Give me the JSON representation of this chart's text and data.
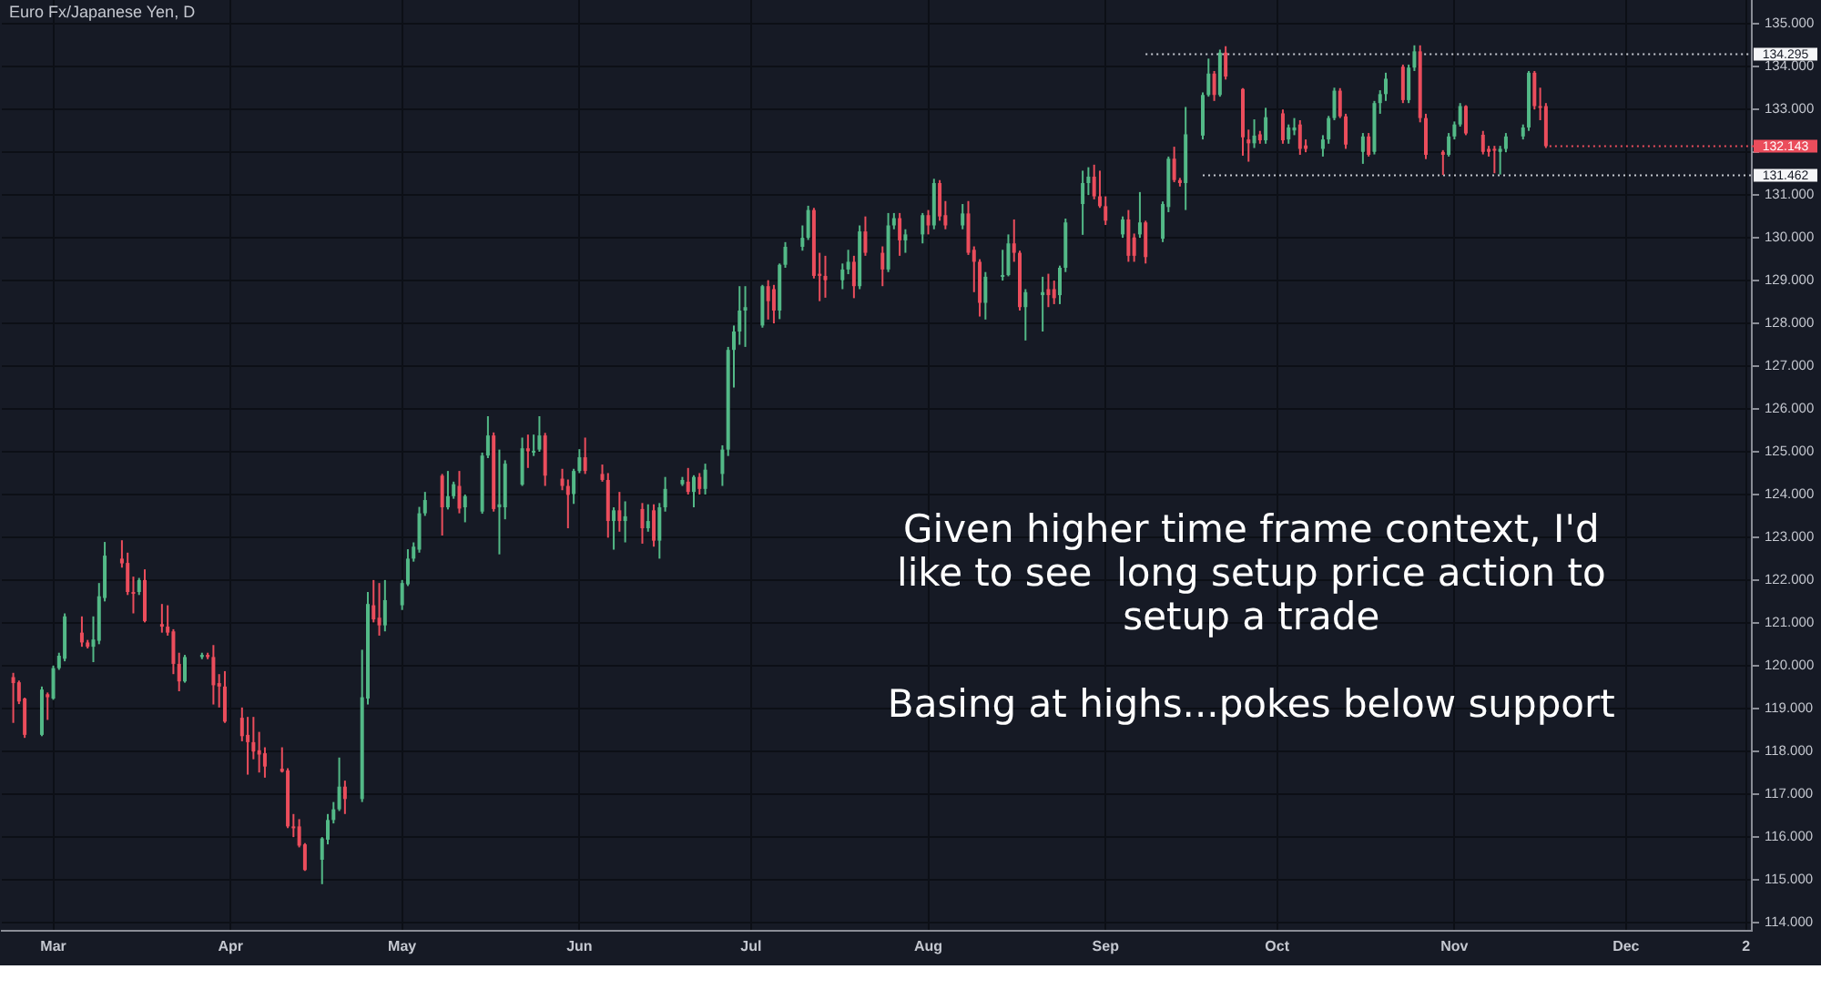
{
  "chart_data": {
    "type": "candlestick",
    "title": "Euro Fx/Japanese Yen, D",
    "x": [
      "--02-22",
      "--02-23",
      "--02-24",
      "--02-27",
      "--02-28",
      "--03-01",
      "--03-02",
      "--03-03",
      "--03-06",
      "--03-07",
      "--03-08",
      "--03-09",
      "--03-10",
      "--03-13",
      "--03-14",
      "--03-15",
      "--03-16",
      "--03-17",
      "--03-20",
      "--03-21",
      "--03-22",
      "--03-23",
      "--03-24",
      "--03-27",
      "--03-28",
      "--03-29",
      "--03-30",
      "--03-31",
      "--04-03",
      "--04-04",
      "--04-05",
      "--04-06",
      "--04-07",
      "--04-10",
      "--04-11",
      "--04-12",
      "--04-13",
      "--04-14",
      "--04-17",
      "--04-18",
      "--04-19",
      "--04-20",
      "--04-21",
      "--04-24",
      "--04-25",
      "--04-26",
      "--04-27",
      "--04-28",
      "--05-01",
      "--05-02",
      "--05-03",
      "--05-04",
      "--05-05",
      "--05-08",
      "--05-09",
      "--05-10",
      "--05-11",
      "--05-12",
      "--05-15",
      "--05-16",
      "--05-17",
      "--05-18",
      "--05-19",
      "--05-22",
      "--05-23",
      "--05-24",
      "--05-25",
      "--05-26",
      "--05-29",
      "--05-30",
      "--05-31",
      "--06-01",
      "--06-02",
      "--06-05",
      "--06-06",
      "--06-07",
      "--06-08",
      "--06-09",
      "--06-12",
      "--06-13",
      "--06-14",
      "--06-15",
      "--06-16",
      "--06-19",
      "--06-20",
      "--06-21",
      "--06-22",
      "--06-23",
      "--06-26",
      "--06-27",
      "--06-28",
      "--06-29",
      "--06-30",
      "--07-03",
      "--07-04",
      "--07-05",
      "--07-06",
      "--07-07",
      "--07-10",
      "--07-11",
      "--07-12",
      "--07-13",
      "--07-14",
      "--07-17",
      "--07-18",
      "--07-19",
      "--07-20",
      "--07-21",
      "--07-24",
      "--07-25",
      "--07-26",
      "--07-27",
      "--07-28",
      "--07-31",
      "--08-01",
      "--08-02",
      "--08-03",
      "--08-04",
      "--08-07",
      "--08-08",
      "--08-09",
      "--08-10",
      "--08-11",
      "--08-14",
      "--08-15",
      "--08-16",
      "--08-17",
      "--08-18",
      "--08-21",
      "--08-22",
      "--08-23",
      "--08-24",
      "--08-25",
      "--08-28",
      "--08-29",
      "--08-30",
      "--08-31",
      "--09-01",
      "--09-04",
      "--09-05",
      "--09-06",
      "--09-07",
      "--09-08",
      "--09-11",
      "--09-12",
      "--09-13",
      "--09-14",
      "--09-15",
      "--09-18",
      "--09-19",
      "--09-20",
      "--09-21",
      "--09-22",
      "--09-25",
      "--09-26",
      "--09-27",
      "--09-28",
      "--09-29",
      "--10-02",
      "--10-03",
      "--10-04",
      "--10-05",
      "--10-06",
      "--10-09",
      "--10-10",
      "--10-11",
      "--10-12",
      "--10-13",
      "--10-16",
      "--10-17",
      "--10-18",
      "--10-19",
      "--10-20",
      "--10-23",
      "--10-24",
      "--10-25",
      "--10-26",
      "--10-27",
      "--10-30",
      "--10-31",
      "--11-01",
      "--11-02",
      "--11-03",
      "--11-06",
      "--11-07",
      "--11-08",
      "--11-09",
      "--11-10",
      "--11-13",
      "--11-14",
      "--11-15",
      "--11-16",
      "--11-17"
    ],
    "ohlc": [
      [
        119.73,
        119.83,
        118.66,
        119.59
      ],
      [
        119.61,
        119.65,
        119.1,
        119.16
      ],
      [
        119.23,
        119.25,
        118.31,
        118.38
      ],
      [
        118.38,
        119.51,
        118.35,
        119.44
      ],
      [
        119.33,
        119.37,
        118.73,
        119.26
      ],
      [
        119.23,
        120.0,
        119.2,
        119.94
      ],
      [
        119.94,
        120.3,
        119.9,
        120.23
      ],
      [
        120.16,
        121.22,
        120.1,
        121.15
      ],
      [
        120.77,
        121.15,
        120.44,
        120.54
      ],
      [
        120.54,
        120.6,
        120.4,
        120.44
      ],
      [
        120.44,
        121.15,
        120.08,
        120.61
      ],
      [
        120.58,
        121.93,
        120.5,
        121.62
      ],
      [
        121.58,
        122.89,
        121.5,
        122.57
      ],
      [
        122.5,
        122.93,
        122.29,
        122.39
      ],
      [
        122.4,
        122.64,
        121.65,
        121.72
      ],
      [
        121.72,
        122.08,
        121.22,
        121.68
      ],
      [
        121.72,
        122.05,
        121.65,
        122.0
      ],
      [
        122.0,
        122.25,
        121.01,
        121.04
      ],
      [
        120.97,
        121.44,
        120.77,
        120.91
      ],
      [
        120.91,
        121.41,
        120.7,
        120.77
      ],
      [
        120.8,
        120.85,
        119.8,
        120.04
      ],
      [
        120.04,
        120.3,
        119.4,
        119.63
      ],
      [
        119.63,
        120.25,
        119.6,
        120.2
      ],
      [
        120.2,
        120.3,
        120.15,
        120.25
      ],
      [
        120.25,
        120.3,
        120.15,
        120.2
      ],
      [
        120.2,
        120.48,
        119.09,
        119.54
      ],
      [
        119.59,
        119.8,
        119.02,
        119.51
      ],
      [
        119.51,
        119.87,
        118.66,
        118.69
      ],
      [
        118.78,
        119.02,
        118.23,
        118.35
      ],
      [
        118.38,
        118.8,
        117.45,
        118.21
      ],
      [
        118.21,
        118.8,
        117.81,
        117.99
      ],
      [
        118.02,
        118.45,
        117.5,
        117.92
      ],
      [
        117.95,
        118.09,
        117.38,
        117.64
      ],
      [
        117.59,
        118.09,
        117.5,
        117.52
      ],
      [
        117.55,
        117.6,
        116.2,
        116.24
      ],
      [
        116.24,
        116.53,
        115.99,
        116.21
      ],
      [
        116.24,
        116.41,
        115.75,
        115.79
      ],
      [
        115.82,
        115.85,
        115.2,
        115.22
      ],
      [
        115.46,
        115.99,
        114.89,
        115.96
      ],
      [
        115.93,
        116.53,
        115.82,
        116.39
      ],
      [
        116.39,
        116.81,
        116.31,
        116.64
      ],
      [
        116.64,
        117.85,
        116.6,
        117.17
      ],
      [
        117.17,
        117.31,
        116.53,
        116.88
      ],
      [
        116.88,
        120.37,
        116.81,
        119.26
      ],
      [
        119.23,
        121.72,
        119.09,
        121.44
      ],
      [
        121.41,
        122.0,
        121.01,
        121.08
      ],
      [
        121.12,
        121.93,
        120.7,
        120.94
      ],
      [
        120.94,
        122.0,
        120.8,
        121.53
      ],
      [
        121.41,
        122.0,
        121.3,
        121.93
      ],
      [
        121.9,
        122.72,
        121.86,
        122.5
      ],
      [
        122.5,
        122.88,
        122.43,
        122.78
      ],
      [
        122.71,
        123.71,
        122.64,
        123.56
      ],
      [
        123.56,
        124.06,
        123.5,
        123.87
      ],
      [
        124.44,
        124.48,
        123.04,
        123.7
      ],
      [
        123.7,
        124.55,
        123.65,
        123.96
      ],
      [
        123.96,
        124.3,
        123.9,
        124.24
      ],
      [
        124.2,
        124.55,
        123.56,
        123.67
      ],
      [
        123.7,
        124.0,
        123.35,
        123.96
      ],
      [
        123.6,
        124.98,
        123.55,
        124.91
      ],
      [
        124.91,
        125.83,
        124.85,
        125.38
      ],
      [
        125.38,
        125.45,
        123.6,
        123.66
      ],
      [
        123.7,
        125.05,
        122.6,
        123.77
      ],
      [
        123.7,
        124.8,
        123.42,
        124.72
      ],
      [
        124.23,
        125.33,
        124.2,
        125.08
      ],
      [
        125.08,
        125.4,
        124.62,
        125.01
      ],
      [
        125.0,
        125.4,
        124.9,
        125.02
      ],
      [
        125.05,
        125.83,
        125.0,
        125.38
      ],
      [
        125.38,
        125.44,
        124.2,
        124.44
      ],
      [
        124.37,
        124.6,
        124.1,
        124.2
      ],
      [
        124.2,
        124.35,
        123.21,
        123.99
      ],
      [
        124.01,
        124.6,
        123.78,
        124.55
      ],
      [
        124.55,
        125.06,
        124.5,
        124.87
      ],
      [
        124.87,
        125.33,
        124.48,
        124.55
      ],
      [
        124.48,
        124.7,
        124.3,
        124.34
      ],
      [
        124.34,
        124.5,
        122.99,
        123.38
      ],
      [
        123.38,
        123.7,
        122.71,
        123.63
      ],
      [
        123.63,
        124.06,
        123.13,
        123.38
      ],
      [
        123.38,
        123.84,
        122.88,
        123.49
      ],
      [
        123.66,
        123.8,
        122.85,
        123.21
      ],
      [
        123.21,
        123.77,
        123.13,
        123.38
      ],
      [
        123.63,
        123.77,
        122.78,
        122.92
      ],
      [
        122.92,
        123.8,
        122.5,
        123.7
      ],
      [
        123.7,
        124.41,
        123.6,
        124.13
      ],
      [
        124.24,
        124.41,
        124.2,
        124.34
      ],
      [
        124.3,
        124.62,
        124.0,
        124.06
      ],
      [
        124.06,
        124.45,
        123.7,
        124.41
      ],
      [
        124.41,
        124.5,
        124.0,
        124.13
      ],
      [
        124.13,
        124.72,
        124.0,
        124.58
      ],
      [
        124.48,
        125.15,
        124.2,
        125.05
      ],
      [
        125.05,
        127.45,
        124.9,
        127.38
      ],
      [
        127.38,
        127.95,
        126.5,
        127.81
      ],
      [
        127.81,
        128.87,
        127.5,
        128.3
      ],
      [
        128.3,
        128.87,
        127.45,
        128.38
      ],
      [
        127.95,
        128.9,
        127.9,
        128.87
      ],
      [
        128.87,
        129.01,
        128.09,
        128.52
      ],
      [
        128.8,
        128.9,
        128.0,
        128.3
      ],
      [
        128.3,
        129.4,
        128.1,
        129.37
      ],
      [
        129.37,
        129.9,
        129.3,
        129.79
      ],
      [
        129.79,
        130.29,
        129.7,
        130.0
      ],
      [
        130.0,
        130.75,
        129.95,
        130.65
      ],
      [
        130.65,
        130.7,
        129.05,
        129.11
      ],
      [
        129.16,
        129.65,
        128.52,
        129.11
      ],
      [
        129.11,
        129.58,
        128.6,
        129.01
      ],
      [
        129.01,
        129.4,
        128.8,
        129.26
      ],
      [
        129.26,
        129.72,
        129.15,
        129.44
      ],
      [
        129.44,
        129.58,
        128.59,
        128.87
      ],
      [
        128.87,
        130.29,
        128.8,
        130.15
      ],
      [
        130.15,
        130.5,
        129.58,
        129.65
      ],
      [
        129.65,
        129.8,
        128.87,
        129.26
      ],
      [
        129.26,
        130.58,
        129.2,
        130.29
      ],
      [
        130.29,
        130.58,
        130.2,
        130.46
      ],
      [
        130.46,
        130.58,
        129.58,
        129.94
      ],
      [
        129.94,
        130.2,
        129.65,
        130.08
      ],
      [
        130.08,
        130.58,
        129.87,
        130.53
      ],
      [
        130.53,
        130.65,
        130.08,
        130.29
      ],
      [
        130.29,
        131.38,
        130.2,
        131.28
      ],
      [
        131.28,
        131.35,
        130.4,
        130.5
      ],
      [
        130.53,
        130.86,
        130.2,
        130.29
      ],
      [
        130.29,
        130.79,
        130.2,
        130.57
      ],
      [
        130.57,
        130.86,
        129.6,
        129.65
      ],
      [
        129.72,
        129.8,
        128.73,
        129.44
      ],
      [
        129.44,
        129.5,
        128.16,
        128.48
      ],
      [
        128.48,
        129.2,
        128.09,
        129.09
      ],
      [
        129.09,
        129.72,
        129.0,
        129.13
      ],
      [
        129.13,
        130.08,
        129.1,
        129.87
      ],
      [
        129.87,
        130.43,
        129.44,
        129.65
      ],
      [
        129.65,
        129.7,
        128.3,
        128.38
      ],
      [
        128.38,
        128.8,
        127.6,
        128.73
      ],
      [
        128.66,
        129.09,
        127.81,
        128.73
      ],
      [
        128.8,
        129.16,
        128.38,
        128.66
      ],
      [
        128.8,
        129.0,
        128.45,
        128.59
      ],
      [
        128.66,
        129.35,
        128.45,
        129.3
      ],
      [
        129.3,
        130.45,
        129.2,
        130.36
      ],
      [
        130.79,
        131.57,
        130.07,
        131.28
      ],
      [
        131.28,
        131.65,
        131.0,
        131.43
      ],
      [
        131.43,
        131.71,
        130.9,
        130.97
      ],
      [
        130.97,
        131.57,
        130.7,
        130.74
      ],
      [
        130.74,
        130.97,
        130.3,
        130.4
      ],
      [
        130.08,
        130.5,
        130.0,
        130.43
      ],
      [
        130.43,
        130.65,
        129.44,
        129.58
      ],
      [
        130.01,
        130.1,
        129.44,
        129.58
      ],
      [
        130.08,
        131.07,
        130.0,
        130.36
      ],
      [
        130.36,
        130.4,
        129.4,
        129.55
      ],
      [
        129.98,
        130.85,
        129.9,
        130.79
      ],
      [
        130.72,
        131.9,
        130.6,
        131.85
      ],
      [
        131.85,
        132.13,
        131.3,
        131.35
      ],
      [
        131.35,
        131.4,
        131.2,
        131.28
      ],
      [
        131.28,
        133.06,
        130.65,
        132.42
      ],
      [
        132.39,
        133.4,
        132.3,
        133.34
      ],
      [
        133.34,
        134.19,
        133.3,
        133.84
      ],
      [
        133.84,
        133.9,
        133.2,
        133.34
      ],
      [
        133.34,
        134.4,
        133.3,
        134.33
      ],
      [
        134.33,
        134.48,
        133.7,
        133.77
      ],
      [
        133.48,
        133.5,
        131.92,
        132.35
      ],
      [
        132.3,
        132.53,
        131.78,
        132.21
      ],
      [
        132.21,
        132.77,
        132.1,
        132.39
      ],
      [
        132.42,
        132.5,
        132.2,
        132.28
      ],
      [
        132.28,
        133.04,
        132.2,
        132.82
      ],
      [
        132.91,
        133.0,
        132.2,
        132.28
      ],
      [
        132.3,
        132.65,
        132.2,
        132.58
      ],
      [
        132.51,
        132.8,
        132.4,
        132.58
      ],
      [
        132.65,
        132.75,
        131.94,
        132.08
      ],
      [
        132.16,
        132.3,
        132.0,
        132.08
      ],
      [
        132.08,
        132.4,
        131.9,
        132.3
      ],
      [
        132.3,
        132.85,
        132.2,
        132.8
      ],
      [
        132.8,
        133.51,
        132.75,
        133.44
      ],
      [
        133.44,
        133.5,
        132.8,
        132.84
      ],
      [
        132.84,
        132.9,
        132.08,
        132.18
      ],
      [
        132.01,
        132.45,
        131.73,
        132.37
      ],
      [
        132.37,
        132.45,
        131.9,
        131.94
      ],
      [
        132.01,
        133.2,
        131.95,
        133.15
      ],
      [
        133.15,
        133.45,
        132.9,
        133.36
      ],
      [
        133.36,
        133.86,
        133.2,
        133.72
      ],
      [
        134.0,
        134.05,
        133.15,
        133.22
      ],
      [
        133.22,
        134.05,
        133.15,
        133.98
      ],
      [
        133.98,
        134.5,
        133.9,
        134.36
      ],
      [
        134.36,
        134.5,
        132.7,
        132.8
      ],
      [
        132.8,
        132.9,
        131.84,
        131.94
      ],
      [
        132.01,
        132.05,
        131.47,
        131.94
      ],
      [
        131.94,
        132.45,
        131.9,
        132.37
      ],
      [
        132.37,
        132.72,
        132.3,
        132.65
      ],
      [
        132.65,
        133.15,
        132.6,
        133.08
      ],
      [
        133.08,
        133.1,
        132.4,
        132.44
      ],
      [
        132.41,
        132.5,
        131.95,
        132.01
      ],
      [
        132.08,
        132.15,
        131.9,
        132.01
      ],
      [
        132.08,
        132.15,
        131.51,
        132.04
      ],
      [
        132.01,
        132.15,
        131.48,
        132.08
      ],
      [
        132.08,
        132.45,
        132.0,
        132.37
      ],
      [
        132.37,
        132.65,
        132.3,
        132.58
      ],
      [
        132.58,
        133.9,
        132.5,
        133.86
      ],
      [
        133.86,
        133.9,
        133.0,
        133.08
      ],
      [
        133.08,
        133.51,
        132.75,
        133.04
      ],
      [
        133.08,
        133.15,
        132.1,
        132.143
      ]
    ],
    "colors": [
      "#eb4d5c",
      "#eb4d5c",
      "#eb4d5c",
      "#53b987",
      "#eb4d5c",
      "#53b987",
      "#53b987",
      "#53b987",
      "#eb4d5c",
      "#eb4d5c",
      "#53b987",
      "#53b987",
      "#53b987",
      "#eb4d5c",
      "#eb4d5c",
      "#eb4d5c",
      "#53b987",
      "#eb4d5c",
      "#eb4d5c",
      "#eb4d5c",
      "#eb4d5c",
      "#eb4d5c",
      "#53b987",
      "#53b987",
      "#eb4d5c",
      "#eb4d5c",
      "#eb4d5c",
      "#eb4d5c",
      "#eb4d5c",
      "#eb4d5c",
      "#eb4d5c",
      "#eb4d5c",
      "#eb4d5c",
      "#eb4d5c",
      "#eb4d5c",
      "#eb4d5c",
      "#eb4d5c",
      "#eb4d5c",
      "#53b987",
      "#53b987",
      "#53b987",
      "#53b987",
      "#eb4d5c",
      "#53b987",
      "#53b987",
      "#eb4d5c",
      "#eb4d5c",
      "#53b987",
      "#53b987",
      "#53b987",
      "#53b987",
      "#53b987",
      "#53b987",
      "#eb4d5c",
      "#53b987",
      "#53b987",
      "#eb4d5c",
      "#53b987",
      "#53b987",
      "#53b987",
      "#eb4d5c",
      "#53b987",
      "#53b987",
      "#53b987",
      "#eb4d5c",
      "#53b987",
      "#53b987",
      "#eb4d5c",
      "#eb4d5c",
      "#eb4d5c",
      "#53b987",
      "#53b987",
      "#eb4d5c",
      "#eb4d5c",
      "#eb4d5c",
      "#53b987",
      "#eb4d5c",
      "#53b987",
      "#eb4d5c",
      "#53b987",
      "#eb4d5c",
      "#53b987",
      "#53b987",
      "#53b987",
      "#eb4d5c",
      "#53b987",
      "#eb4d5c",
      "#53b987",
      "#53b987",
      "#53b987",
      "#53b987",
      "#53b987",
      "#53b987",
      "#53b987",
      "#eb4d5c",
      "#eb4d5c",
      "#53b987",
      "#53b987",
      "#53b987",
      "#53b987",
      "#eb4d5c",
      "#eb4d5c",
      "#eb4d5c",
      "#53b987",
      "#53b987",
      "#eb4d5c",
      "#53b987",
      "#eb4d5c",
      "#eb4d5c",
      "#53b987",
      "#53b987",
      "#eb4d5c",
      "#53b987",
      "#53b987",
      "#eb4d5c",
      "#53b987",
      "#eb4d5c",
      "#eb4d5c",
      "#53b987",
      "#eb4d5c",
      "#eb4d5c",
      "#eb4d5c",
      "#53b987",
      "#53b987",
      "#53b987",
      "#eb4d5c",
      "#eb4d5c",
      "#53b987",
      "#53b987",
      "#eb4d5c",
      "#eb4d5c",
      "#53b987",
      "#53b987",
      "#53b987",
      "#53b987",
      "#eb4d5c",
      "#eb4d5c",
      "#eb4d5c",
      "#53b987",
      "#eb4d5c",
      "#eb4d5c",
      "#53b987",
      "#eb4d5c",
      "#53b987",
      "#53b987",
      "#eb4d5c",
      "#eb4d5c",
      "#53b987",
      "#53b987",
      "#53b987",
      "#eb4d5c",
      "#53b987",
      "#eb4d5c",
      "#eb4d5c",
      "#eb4d5c",
      "#53b987",
      "#eb4d5c",
      "#53b987",
      "#eb4d5c",
      "#53b987",
      "#53b987",
      "#eb4d5c",
      "#eb4d5c",
      "#53b987",
      "#53b987",
      "#53b987",
      "#eb4d5c",
      "#eb4d5c",
      "#53b987",
      "#eb4d5c",
      "#53b987",
      "#53b987",
      "#53b987",
      "#eb4d5c",
      "#53b987",
      "#53b987",
      "#eb4d5c",
      "#eb4d5c",
      "#eb4d5c",
      "#53b987",
      "#53b987",
      "#53b987",
      "#eb4d5c",
      "#eb4d5c",
      "#eb4d5c",
      "#eb4d5c",
      "#53b987",
      "#53b987",
      "#53b987",
      "#53b987",
      "#eb4d5c",
      "#eb4d5c",
      "#eb4d5c"
    ],
    "series": [
      {
        "type": "line",
        "x": [
          "--09-08",
          "--12-23"
        ],
        "values": [
          134.295,
          134.295
        ],
        "color": "#c7cad1",
        "line_style": "dotted"
      },
      {
        "type": "line",
        "x": [
          "--09-18",
          "--12-23"
        ],
        "values": [
          131.462,
          131.462
        ],
        "color": "#c7cad1",
        "line_style": "dotted"
      }
    ],
    "xlim": [
      "--02-20",
      "--12-23"
    ],
    "xticks": [
      {
        "value": "--03-01",
        "label": "Mar"
      },
      {
        "value": "--04-01",
        "label": "Apr"
      },
      {
        "value": "--05-01",
        "label": "May"
      },
      {
        "value": "--06-01",
        "label": "Jun"
      },
      {
        "value": "--07-01",
        "label": "Jul"
      },
      {
        "value": "--08-01",
        "label": "Aug"
      },
      {
        "value": "--09-01",
        "label": "Sep"
      },
      {
        "value": "--10-01",
        "label": "Oct"
      },
      {
        "value": "--11-01",
        "label": "Nov"
      },
      {
        "value": "--12-01",
        "label": "Dec"
      },
      {
        "value": "--12-22",
        "label": "2"
      }
    ],
    "ylim": [
      113.8,
      135.56
    ],
    "yticks": [
      {
        "value": 114,
        "label": "114.000"
      },
      {
        "value": 115,
        "label": "115.000"
      },
      {
        "value": 116,
        "label": "116.000"
      },
      {
        "value": 117,
        "label": "117.000"
      },
      {
        "value": 118,
        "label": "118.000"
      },
      {
        "value": 119,
        "label": "119.000"
      },
      {
        "value": 120,
        "label": "120.000"
      },
      {
        "value": 121,
        "label": "121.000"
      },
      {
        "value": 122,
        "label": "122.000"
      },
      {
        "value": 123,
        "label": "123.000"
      },
      {
        "value": 124,
        "label": "124.000"
      },
      {
        "value": 125,
        "label": "125.000"
      },
      {
        "value": 126,
        "label": "126.000"
      },
      {
        "value": 127,
        "label": "127.000"
      },
      {
        "value": 128,
        "label": "128.000"
      },
      {
        "value": 129,
        "label": "129.000"
      },
      {
        "value": 130,
        "label": "130.000"
      },
      {
        "value": 131,
        "label": "131.000"
      },
      {
        "value": 132,
        "label": null
      },
      {
        "value": 133,
        "label": "133.000"
      },
      {
        "value": 134,
        "label": "134.000"
      },
      {
        "value": 135,
        "label": "135.000"
      }
    ],
    "grid": true,
    "annotations": [
      "Given higher time frame context, I'd like to see  long setup price action to setup a trade",
      "Basing at highs...pokes below support",
      {
        "text": "134.295",
        "x": "--12-23",
        "y": 134.295
      },
      {
        "text": "132.143",
        "x": "--11-17",
        "y": 132.143
      },
      {
        "text": "131.462",
        "x": "--12-23",
        "y": 131.462
      }
    ]
  }
}
